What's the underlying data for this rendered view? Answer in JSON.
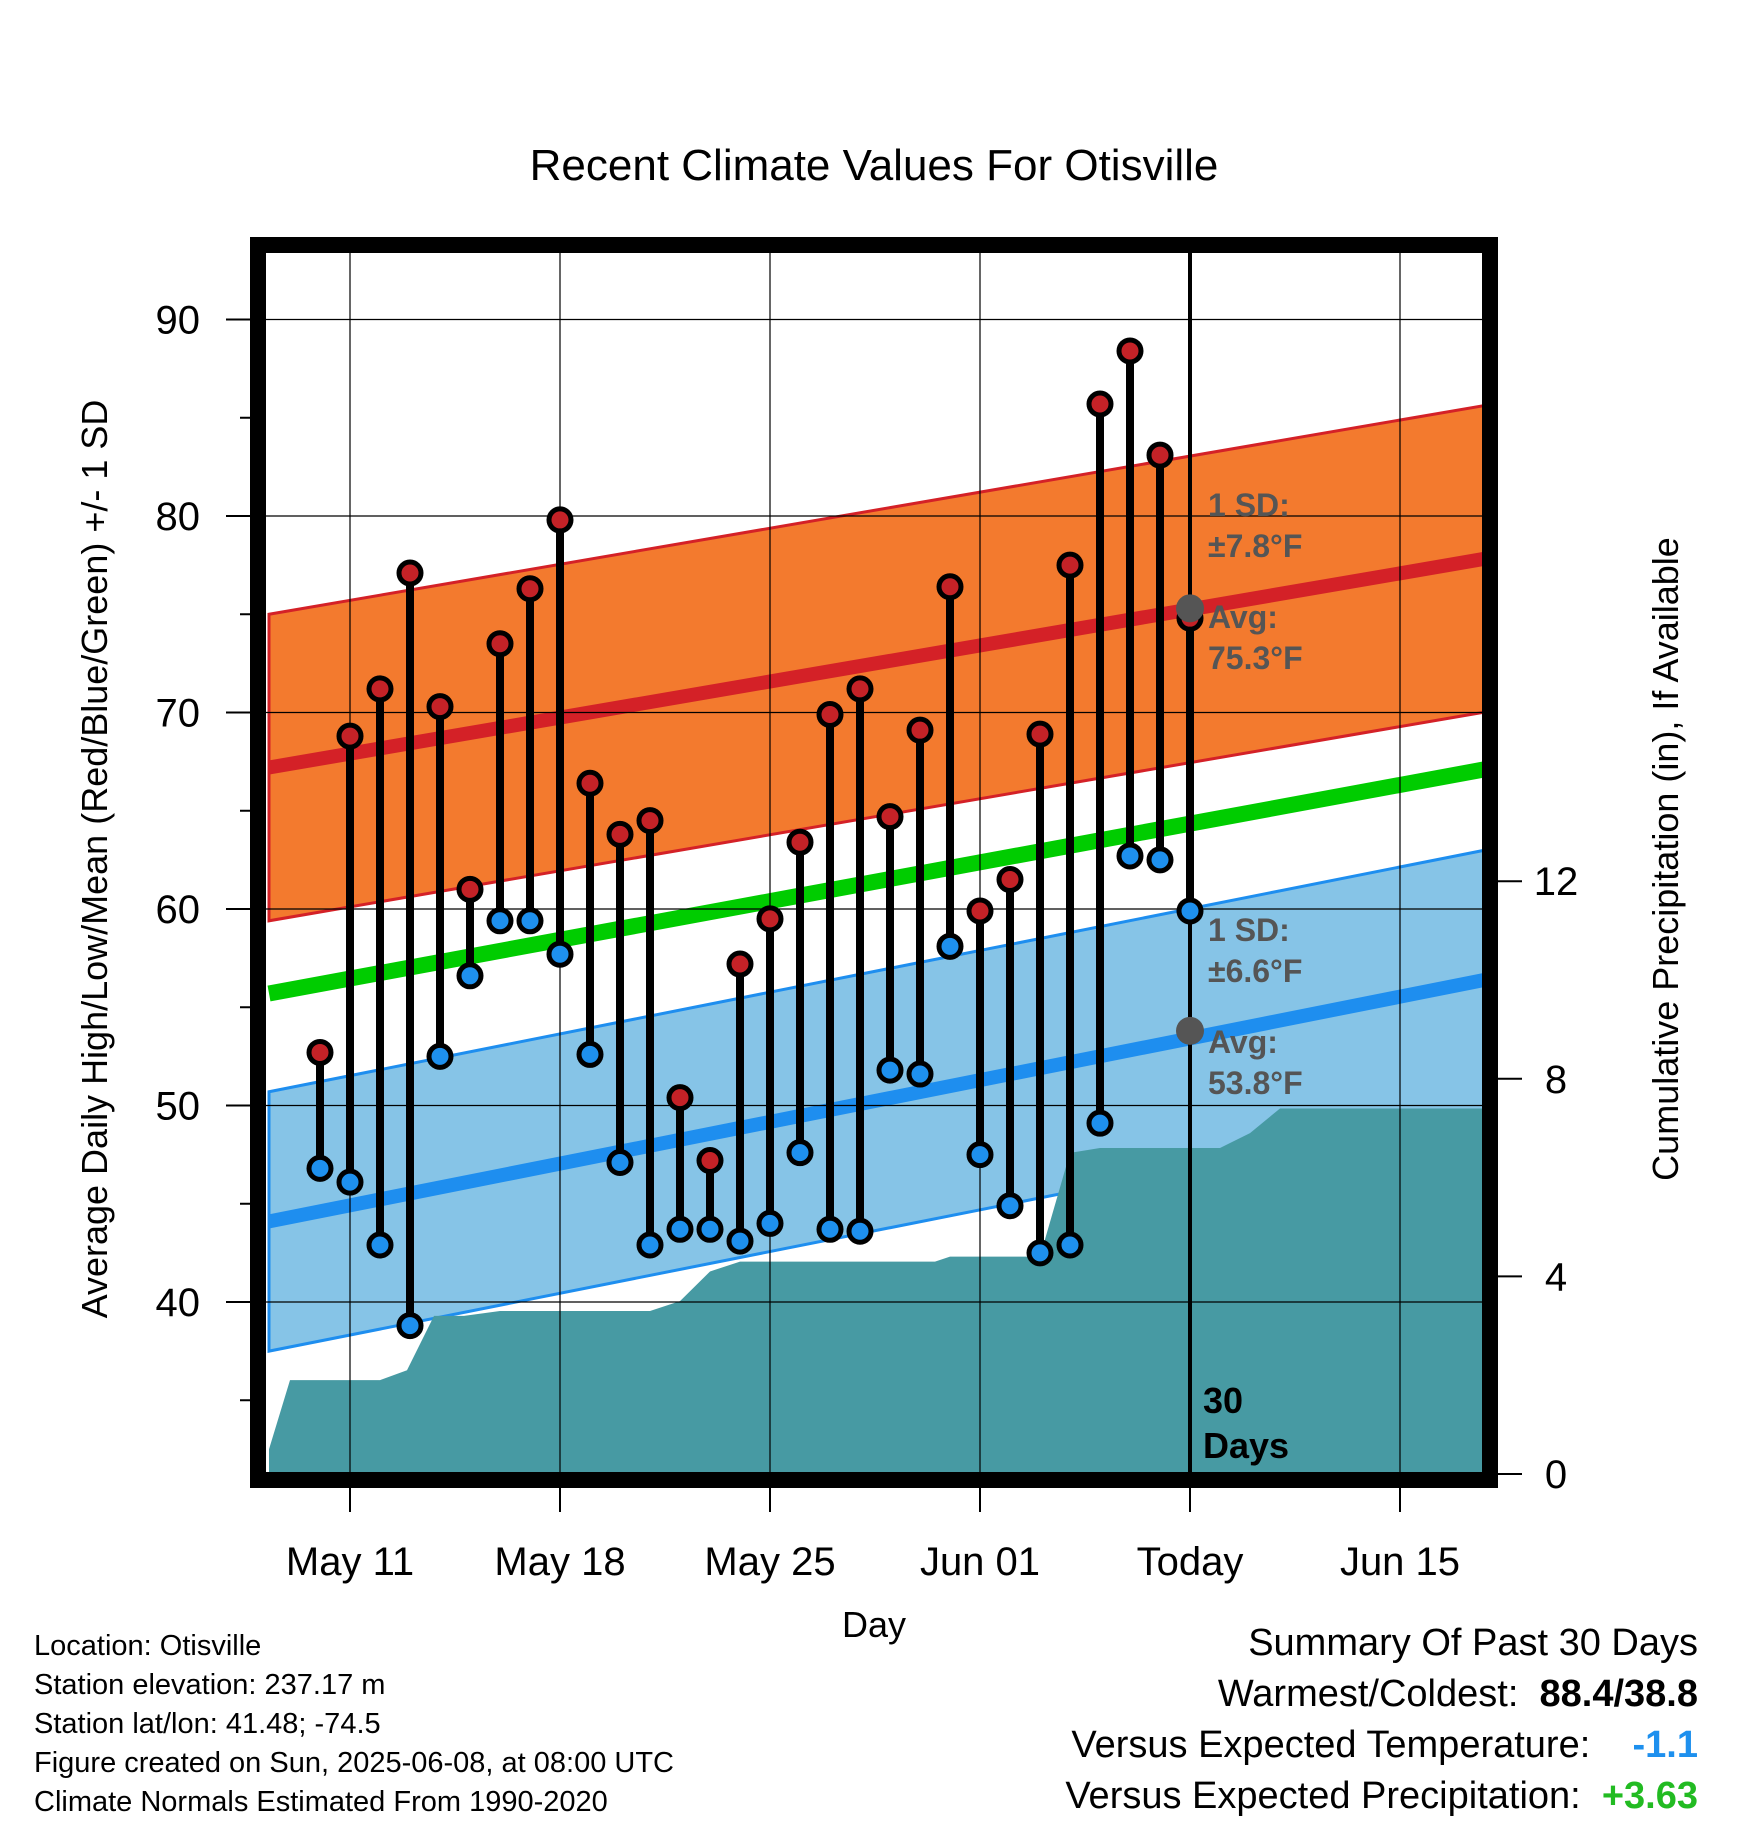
{
  "chart_data": {
    "type": "line",
    "title": "Recent Climate Values For Otisville",
    "xlabel": "Day",
    "ylabel": "Average Daily High/Low/Mean (Red/Blue/Green) +/- 1 SD",
    "y2label": "Cumulative Precipitation (in), If Available",
    "x_ticks": [
      "May 11",
      "May 18",
      "May 25",
      "Jun 01",
      "Today",
      "Jun 15"
    ],
    "y_ticks": [
      "40",
      "50",
      "60",
      "70",
      "80",
      "90"
    ],
    "y2_ticks": [
      "0",
      "4",
      "8",
      "12"
    ],
    "ylim": [
      31,
      94.5
    ],
    "y2lim": [
      0,
      23.8
    ],
    "xlim_day_offset_from_may11": [
      -2.7,
      38.5
    ],
    "grid": true,
    "dates": [
      "May 10",
      "May 11",
      "May 12",
      "May 13",
      "May 14",
      "May 15",
      "May 16",
      "May 17",
      "May 18",
      "May 19",
      "May 20",
      "May 21",
      "May 22",
      "May 23",
      "May 24",
      "May 25",
      "May 26",
      "May 27",
      "May 28",
      "May 29",
      "May 30",
      "May 31",
      "Jun 01",
      "Jun 02",
      "Jun 03",
      "Jun 04",
      "Jun 05",
      "Jun 06",
      "Jun 07",
      "Jun 08"
    ],
    "high": [
      52.7,
      68.8,
      71.2,
      77.1,
      70.3,
      61.0,
      73.5,
      76.3,
      79.8,
      66.4,
      63.8,
      64.5,
      50.4,
      47.2,
      57.2,
      59.5,
      63.4,
      69.9,
      71.2,
      64.7,
      69.1,
      76.4,
      59.9,
      61.5,
      68.9,
      77.5,
      85.7,
      88.4,
      83.1,
      74.8
    ],
    "low": [
      46.8,
      46.1,
      42.9,
      38.8,
      52.5,
      56.6,
      59.4,
      59.4,
      57.7,
      52.6,
      47.1,
      42.9,
      43.7,
      43.7,
      43.1,
      44.0,
      47.6,
      43.7,
      43.6,
      51.8,
      51.6,
      58.1,
      47.5,
      44.9,
      42.5,
      42.9,
      49.1,
      62.7,
      62.5,
      59.9
    ],
    "normal_high": {
      "start": 67.2,
      "end": 78.0,
      "sd": 7.8,
      "today_avg": 75.3
    },
    "normal_low": {
      "start": 44.1,
      "end": 56.6,
      "sd": 6.6,
      "today_avg": 53.8
    },
    "normal_mean": {
      "start": 55.7,
      "end": 67.3
    },
    "precip_x_offset": [
      -2.7,
      -2.0,
      -1.0,
      0.0,
      1.0,
      1.9,
      2.8,
      3.8,
      5.0,
      6.0,
      7.0,
      8.0,
      9.0,
      10.0,
      11.0,
      12.0,
      13.0,
      14.0,
      15.0,
      16.0,
      17.0,
      18.2,
      19.0,
      19.5,
      20.0,
      22.0,
      23.0,
      24.0,
      25.0,
      25.8,
      26.0,
      27.0,
      28.0,
      29.0,
      30.0,
      31.0,
      31.5,
      32.0,
      33.0,
      34.0,
      35.0,
      36.0,
      37.0,
      38.0,
      38.5
    ],
    "precip_in": [
      0.5,
      1.9,
      1.9,
      1.9,
      1.9,
      2.1,
      3.2,
      3.2,
      3.3,
      3.3,
      3.3,
      3.3,
      3.3,
      3.3,
      3.5,
      4.1,
      4.3,
      4.3,
      4.3,
      4.3,
      4.3,
      4.3,
      4.3,
      4.3,
      4.4,
      4.4,
      4.4,
      6.5,
      6.6,
      6.6,
      6.6,
      6.6,
      6.6,
      6.6,
      6.9,
      7.4,
      7.4,
      7.4,
      7.4,
      7.4,
      7.4,
      7.4,
      7.4,
      7.4,
      7.4
    ],
    "colors": {
      "high_band": "#f37a2e",
      "high_line": "#d42127",
      "low_band": "#86c4e7",
      "low_line": "#1e8eef",
      "mean_line": "#00cc00",
      "precip": "#479aa3",
      "high_dot": "#c42227",
      "low_dot": "#1e90ee",
      "today_dot": "#555555"
    }
  },
  "annotations": {
    "high_sd_label": "1 SD:",
    "high_sd_value": "±7.8°F",
    "high_avg_label": "Avg:",
    "high_avg_value": "75.3°F",
    "low_sd_label": "1 SD:",
    "low_sd_value": "±6.6°F",
    "low_avg_label": "Avg:",
    "low_avg_value": "53.8°F",
    "days_count": "30",
    "days_word": "Days"
  },
  "info": {
    "location": "Location: Otisville",
    "elevation": "Station elevation: 237.17 m",
    "latlon": "Station lat/lon: 41.48; -74.5",
    "created": "Figure created on Sun, 2025-06-08, at 08:00 UTC",
    "normals": "Climate Normals Estimated From 1990-2020"
  },
  "summary": {
    "title": "Summary Of Past 30 Days",
    "warm_cold_label": "Warmest/Coldest:",
    "warm_cold_value": "88.4/38.8",
    "temp_label": "Versus Expected Temperature:",
    "temp_value": "-1.1",
    "temp_color": "#1e90ee",
    "precip_label": "Versus Expected Precipitation:",
    "precip_value": "+3.63",
    "precip_color": "#22bb22"
  }
}
